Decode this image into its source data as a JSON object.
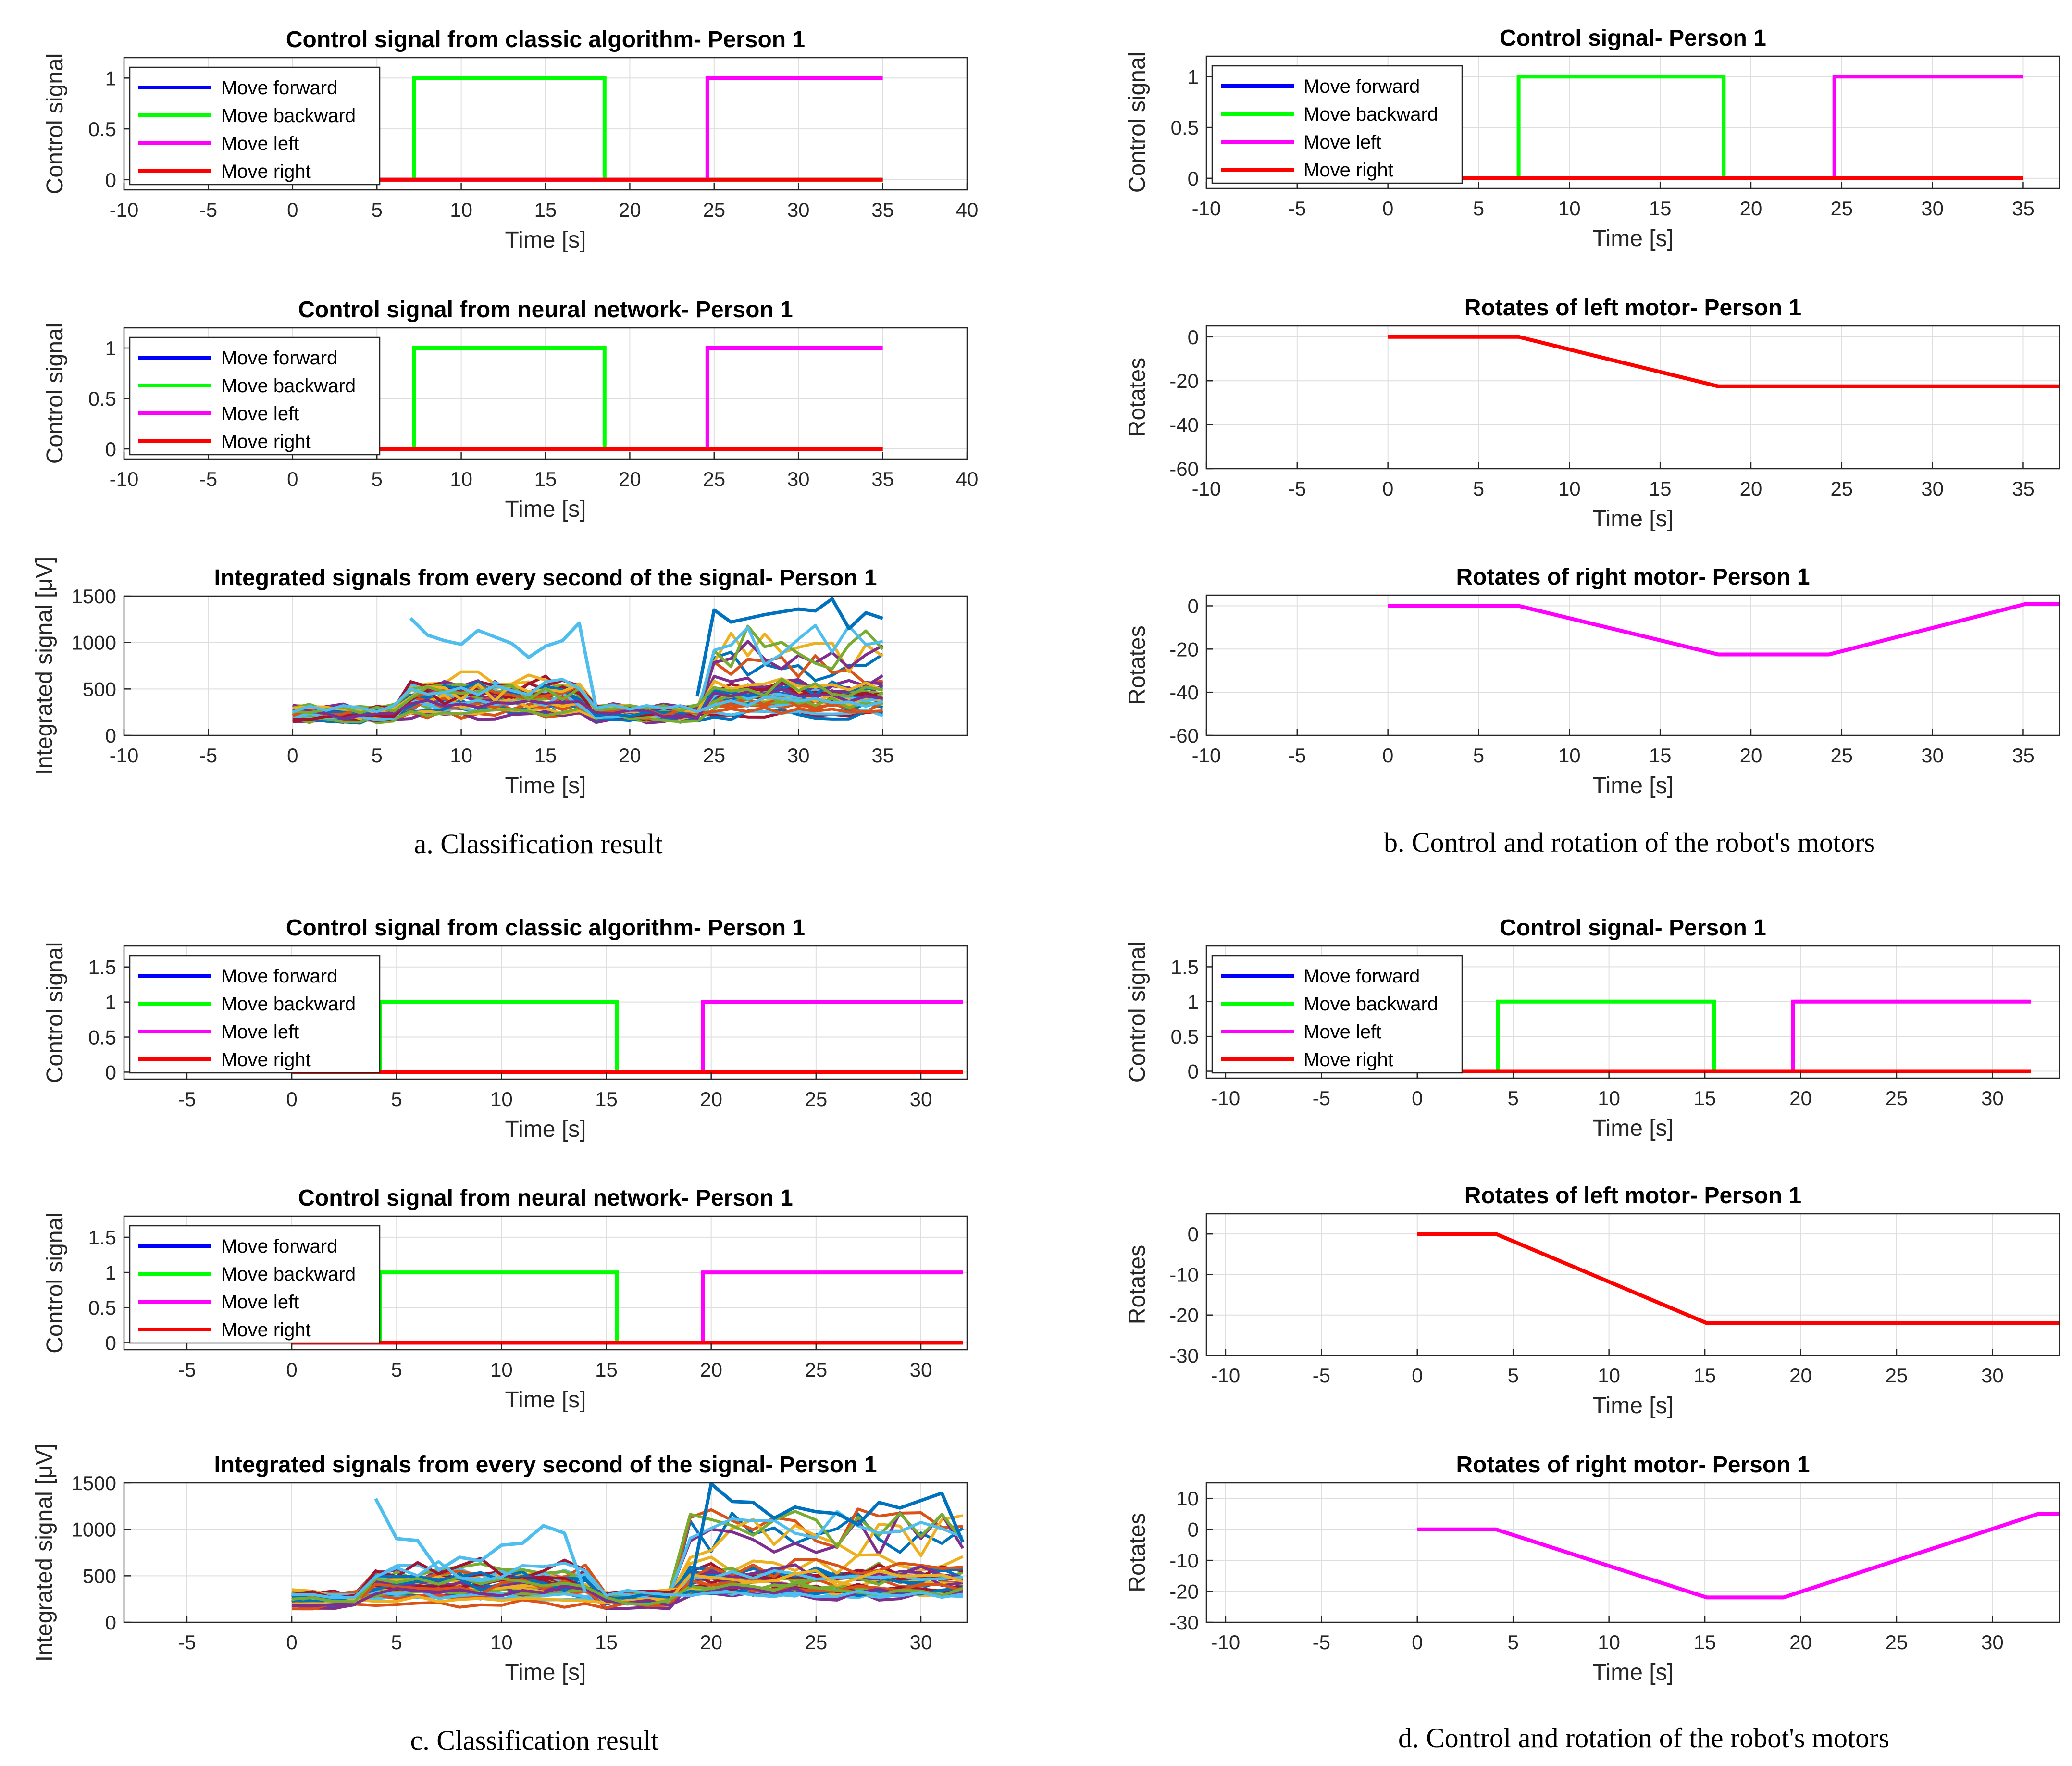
{
  "captions": {
    "a": "a. Classification result",
    "b": "b. Control and rotation of the robot's motors",
    "c": "c. Classification result",
    "d": "d. Control and rotation of the robot's motors"
  },
  "legend_labels": [
    "Move forward",
    "Move backward",
    "Move left",
    "Move right"
  ],
  "colors": {
    "forward": "#0000ff",
    "backward": "#00ff00",
    "left": "#ff00ff",
    "right": "#ff0000",
    "emg_palette": [
      "#0072bd",
      "#d95319",
      "#edb120",
      "#7e2f8e",
      "#77ac30",
      "#4dbeee",
      "#a2142f"
    ]
  },
  "chart_data": [
    {
      "id": "a1",
      "type": "line",
      "title": "Control signal from classic algorithm- Person 1",
      "xlabel": "Time [s]",
      "ylabel": "Control signal",
      "xlim": [
        -10,
        40
      ],
      "ylim": [
        -0.1,
        1.2
      ],
      "xticks": [
        -10,
        -5,
        0,
        5,
        10,
        15,
        20,
        25,
        30,
        35,
        40
      ],
      "yticks": [
        0,
        0.5,
        1
      ],
      "legend": true,
      "legend_loc": "top-left",
      "series": [
        {
          "name": "Move forward",
          "x": [
            0,
            35
          ],
          "y": [
            0,
            0
          ]
        },
        {
          "name": "Move backward",
          "x": [
            0,
            7.2,
            7.2,
            18.5,
            18.5,
            35
          ],
          "y": [
            0,
            0,
            1,
            1,
            0,
            0
          ]
        },
        {
          "name": "Move left",
          "x": [
            0,
            24.6,
            24.6,
            35
          ],
          "y": [
            0,
            0,
            1,
            1
          ]
        },
        {
          "name": "Move right",
          "x": [
            0,
            35
          ],
          "y": [
            0,
            0
          ]
        }
      ]
    },
    {
      "id": "a2",
      "type": "line",
      "title": "Control signal from neural network- Person 1",
      "xlabel": "Time [s]",
      "ylabel": "Control signal",
      "xlim": [
        -10,
        40
      ],
      "ylim": [
        -0.1,
        1.2
      ],
      "xticks": [
        -10,
        -5,
        0,
        5,
        10,
        15,
        20,
        25,
        30,
        35,
        40
      ],
      "yticks": [
        0,
        0.5,
        1
      ],
      "legend": true,
      "legend_loc": "top-left",
      "series": [
        {
          "name": "Move forward",
          "x": [
            0,
            35
          ],
          "y": [
            0,
            0
          ]
        },
        {
          "name": "Move backward",
          "x": [
            0,
            7.2,
            7.2,
            18.5,
            18.5,
            35
          ],
          "y": [
            0,
            0,
            1,
            1,
            0,
            0
          ]
        },
        {
          "name": "Move left",
          "x": [
            0,
            24.6,
            24.6,
            35
          ],
          "y": [
            0,
            0,
            1,
            1
          ]
        },
        {
          "name": "Move right",
          "x": [
            0,
            35
          ],
          "y": [
            0,
            0
          ]
        }
      ]
    },
    {
      "id": "a3",
      "type": "line",
      "title": "Integrated signals from every second of the signal- Person 1",
      "xlabel": "Time [s]",
      "ylabel": "Integrated signal [μV]",
      "xlim": [
        -10,
        40
      ],
      "ylim": [
        0,
        1500
      ],
      "xticks": [
        -10,
        -5,
        0,
        5,
        10,
        15,
        20,
        25,
        30,
        35
      ],
      "yticks": [
        0,
        500,
        1000,
        1500
      ],
      "legend": false,
      "emg": {
        "t0": 0,
        "t1": 35,
        "n": 36,
        "seed": 11,
        "active_a": [
          6.5,
          17.5
        ],
        "active_b": [
          24.5,
          35
        ],
        "highlight_a": [
          [
            7,
            1260
          ],
          [
            8,
            1080
          ],
          [
            9,
            1020
          ],
          [
            10,
            980
          ],
          [
            11,
            1130
          ],
          [
            12,
            1060
          ],
          [
            13,
            990
          ],
          [
            14,
            840
          ],
          [
            15,
            960
          ],
          [
            16,
            1020
          ],
          [
            17,
            1210
          ],
          [
            18,
            300
          ]
        ],
        "highlight_b": [
          [
            24,
            420
          ],
          [
            25,
            1350
          ],
          [
            26,
            1220
          ],
          [
            27,
            1260
          ],
          [
            28,
            1300
          ],
          [
            29,
            1330
          ],
          [
            30,
            1360
          ],
          [
            31,
            1340
          ],
          [
            32,
            1470
          ],
          [
            33,
            1150
          ],
          [
            34,
            1320
          ],
          [
            35,
            1260
          ]
        ]
      }
    },
    {
      "id": "b1",
      "type": "line",
      "title": "Control signal- Person 1",
      "xlabel": "Time [s]",
      "ylabel": "Control signal",
      "xlim": [
        -10,
        37
      ],
      "ylim": [
        -0.1,
        1.2
      ],
      "xticks": [
        -10,
        -5,
        0,
        5,
        10,
        15,
        20,
        25,
        30,
        35
      ],
      "yticks": [
        0,
        0.5,
        1
      ],
      "legend": true,
      "legend_loc": "top-left",
      "series": [
        {
          "name": "Move forward",
          "x": [
            0,
            35
          ],
          "y": [
            0,
            0
          ]
        },
        {
          "name": "Move backward",
          "x": [
            0,
            7.2,
            7.2,
            18.5,
            18.5,
            35
          ],
          "y": [
            0,
            0,
            1,
            1,
            0,
            0
          ]
        },
        {
          "name": "Move left",
          "x": [
            0,
            24.6,
            24.6,
            35
          ],
          "y": [
            0,
            0,
            1,
            1
          ]
        },
        {
          "name": "Move right",
          "x": [
            0,
            35
          ],
          "y": [
            0,
            0
          ]
        }
      ]
    },
    {
      "id": "b2",
      "type": "line",
      "title": "Rotates of left motor- Person 1",
      "xlabel": "Time [s]",
      "ylabel": "Rotates",
      "xlim": [
        -10,
        37
      ],
      "ylim": [
        -60,
        5
      ],
      "xticks": [
        -10,
        -5,
        0,
        5,
        10,
        15,
        20,
        25,
        30,
        35
      ],
      "yticks": [
        -60,
        -40,
        -20,
        0
      ],
      "legend": false,
      "series": [
        {
          "name": "Left motor",
          "color_key": "right",
          "x": [
            0,
            7.2,
            18.2,
            37
          ],
          "y": [
            0,
            0,
            -22.5,
            -22.5
          ]
        }
      ]
    },
    {
      "id": "b3",
      "type": "line",
      "title": "Rotates of right motor- Person 1",
      "xlabel": "Time [s]",
      "ylabel": "Rotates",
      "xlim": [
        -10,
        37
      ],
      "ylim": [
        -60,
        5
      ],
      "xticks": [
        -10,
        -5,
        0,
        5,
        10,
        15,
        20,
        25,
        30,
        35
      ],
      "yticks": [
        -60,
        -40,
        -20,
        0
      ],
      "legend": false,
      "series": [
        {
          "name": "Right motor",
          "color_key": "left",
          "x": [
            0,
            7.2,
            18.2,
            24.3,
            35.2,
            37
          ],
          "y": [
            0,
            0,
            -22.5,
            -22.5,
            1,
            1
          ]
        }
      ]
    },
    {
      "id": "c1",
      "type": "line",
      "title": "Control signal from classic algorithm- Person 1",
      "xlabel": "Time [s]",
      "ylabel": "Control signal",
      "xlim": [
        -8,
        32.2
      ],
      "ylim": [
        -0.1,
        1.8
      ],
      "xticks": [
        -5,
        0,
        5,
        10,
        15,
        20,
        25,
        30
      ],
      "yticks": [
        0,
        0.5,
        1,
        1.5
      ],
      "legend": true,
      "legend_loc": "top-left",
      "series": [
        {
          "name": "Move forward",
          "x": [
            0,
            32
          ],
          "y": [
            0,
            0
          ]
        },
        {
          "name": "Move backward",
          "x": [
            0,
            4.2,
            4.2,
            15.5,
            15.5,
            32
          ],
          "y": [
            0,
            0,
            1,
            1,
            0,
            0
          ]
        },
        {
          "name": "Move left",
          "x": [
            0,
            19.6,
            19.6,
            32
          ],
          "y": [
            0,
            0,
            1,
            1
          ]
        },
        {
          "name": "Move right",
          "x": [
            0,
            32
          ],
          "y": [
            0,
            0
          ]
        }
      ]
    },
    {
      "id": "c2",
      "type": "line",
      "title": "Control signal from neural network- Person 1",
      "xlabel": "Time [s]",
      "ylabel": "Control signal",
      "xlim": [
        -8,
        32.2
      ],
      "ylim": [
        -0.1,
        1.8
      ],
      "xticks": [
        -5,
        0,
        5,
        10,
        15,
        20,
        25,
        30
      ],
      "yticks": [
        0,
        0.5,
        1,
        1.5
      ],
      "legend": true,
      "legend_loc": "top-left",
      "series": [
        {
          "name": "Move forward",
          "x": [
            0,
            32
          ],
          "y": [
            0,
            0
          ]
        },
        {
          "name": "Move backward",
          "x": [
            0,
            4.2,
            4.2,
            15.5,
            15.5,
            32
          ],
          "y": [
            0,
            0,
            1,
            1,
            0,
            0
          ]
        },
        {
          "name": "Move left",
          "x": [
            0,
            19.6,
            19.6,
            32
          ],
          "y": [
            0,
            0,
            1,
            1
          ]
        },
        {
          "name": "Move right",
          "x": [
            0,
            32
          ],
          "y": [
            0,
            0
          ]
        }
      ]
    },
    {
      "id": "c3",
      "type": "line",
      "title": "Integrated signals from every second of the signal- Person 1",
      "xlabel": "Time [s]",
      "ylabel": "Integrated signal [μV]",
      "xlim": [
        -8,
        32.2
      ],
      "ylim": [
        0,
        1500
      ],
      "xticks": [
        -5,
        0,
        5,
        10,
        15,
        20,
        25,
        30
      ],
      "yticks": [
        0,
        500,
        1000,
        1500
      ],
      "legend": false,
      "emg": {
        "t0": 0,
        "t1": 32,
        "n": 33,
        "seed": 23,
        "active_a": [
          3.5,
          14.5
        ],
        "active_b": [
          19,
          32
        ],
        "highlight_a": [
          [
            4,
            1330
          ],
          [
            5,
            900
          ],
          [
            6,
            880
          ],
          [
            7,
            560
          ],
          [
            8,
            700
          ],
          [
            9,
            660
          ],
          [
            10,
            830
          ],
          [
            11,
            850
          ],
          [
            12,
            1040
          ],
          [
            13,
            960
          ],
          [
            14,
            320
          ]
        ],
        "highlight_b": [
          [
            19,
            380
          ],
          [
            20,
            1490
          ],
          [
            21,
            1300
          ],
          [
            22,
            1290
          ],
          [
            23,
            1120
          ],
          [
            24,
            1240
          ],
          [
            25,
            1190
          ],
          [
            26,
            1170
          ],
          [
            27,
            1050
          ],
          [
            28,
            1290
          ],
          [
            29,
            1230
          ],
          [
            30,
            1310
          ],
          [
            31,
            1390
          ],
          [
            32,
            860
          ]
        ]
      }
    },
    {
      "id": "d1",
      "type": "line",
      "title": "Control signal- Person 1",
      "xlabel": "Time [s]",
      "ylabel": "Control signal",
      "xlim": [
        -11,
        33.5
      ],
      "ylim": [
        -0.1,
        1.8
      ],
      "xticks": [
        -10,
        -5,
        0,
        5,
        10,
        15,
        20,
        25,
        30
      ],
      "yticks": [
        0,
        0.5,
        1,
        1.5
      ],
      "legend": true,
      "legend_loc": "top-left",
      "series": [
        {
          "name": "Move forward",
          "x": [
            0,
            32
          ],
          "y": [
            0,
            0
          ]
        },
        {
          "name": "Move backward",
          "x": [
            0,
            4.2,
            4.2,
            15.5,
            15.5,
            32
          ],
          "y": [
            0,
            0,
            1,
            1,
            0,
            0
          ]
        },
        {
          "name": "Move left",
          "x": [
            0,
            19.6,
            19.6,
            32
          ],
          "y": [
            0,
            0,
            1,
            1
          ]
        },
        {
          "name": "Move right",
          "x": [
            0,
            32
          ],
          "y": [
            0,
            0
          ]
        }
      ]
    },
    {
      "id": "d2",
      "type": "line",
      "title": "Rotates of left motor- Person 1",
      "xlabel": "Time [s]",
      "ylabel": "Rotates",
      "xlim": [
        -11,
        33.5
      ],
      "ylim": [
        -30,
        5
      ],
      "xticks": [
        -10,
        -5,
        0,
        5,
        10,
        15,
        20,
        25,
        30
      ],
      "yticks": [
        -30,
        -20,
        -10,
        0
      ],
      "legend": false,
      "series": [
        {
          "name": "Left motor",
          "color_key": "right",
          "x": [
            0,
            4.1,
            15.1,
            33.5
          ],
          "y": [
            0,
            0,
            -22,
            -22
          ]
        }
      ]
    },
    {
      "id": "d3",
      "type": "line",
      "title": "Rotates of right motor- Person 1",
      "xlabel": "Time [s]",
      "ylabel": "Rotates",
      "xlim": [
        -11,
        33.5
      ],
      "ylim": [
        -30,
        15
      ],
      "xticks": [
        -10,
        -5,
        0,
        5,
        10,
        15,
        20,
        25,
        30
      ],
      "yticks": [
        -30,
        -20,
        -10,
        0,
        10
      ],
      "legend": false,
      "series": [
        {
          "name": "Right motor",
          "color_key": "left",
          "x": [
            0,
            4.1,
            15.1,
            19.1,
            32.4,
            33.5
          ],
          "y": [
            0,
            0,
            -22,
            -22,
            5,
            5
          ]
        }
      ]
    }
  ]
}
